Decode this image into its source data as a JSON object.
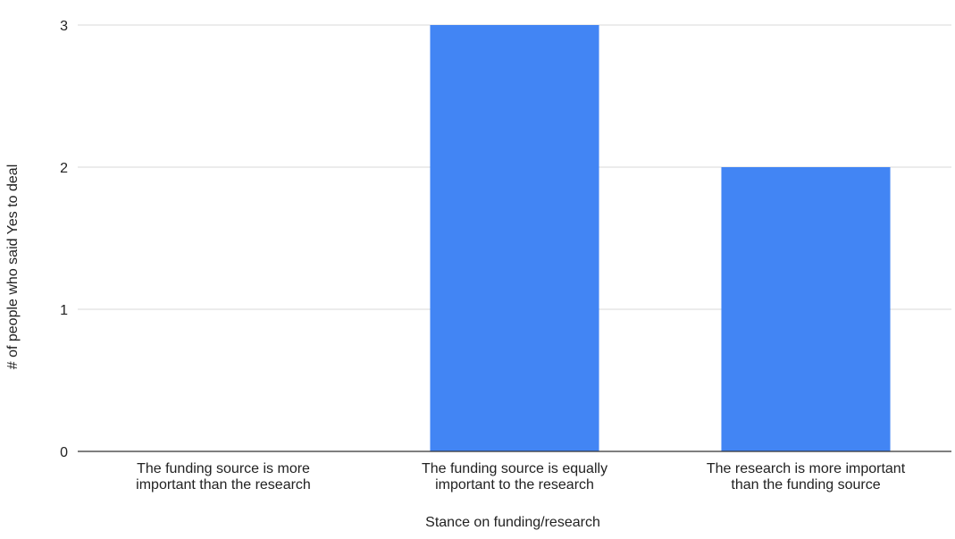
{
  "chart_data": {
    "type": "bar",
    "title": "",
    "xlabel": "Stance on funding/research",
    "ylabel": "# of people who said Yes to deal",
    "categories": [
      [
        "The funding source is more",
        "important than the research"
      ],
      [
        "The funding source is equally",
        "important to the research"
      ],
      [
        "The research is more important",
        "than the funding source"
      ]
    ],
    "values": [
      0,
      3,
      2
    ],
    "ylim": [
      0,
      3
    ],
    "yticks": [
      0,
      1,
      2,
      3
    ],
    "grid": true,
    "legend": "none",
    "bar_color": "#4285f4"
  }
}
